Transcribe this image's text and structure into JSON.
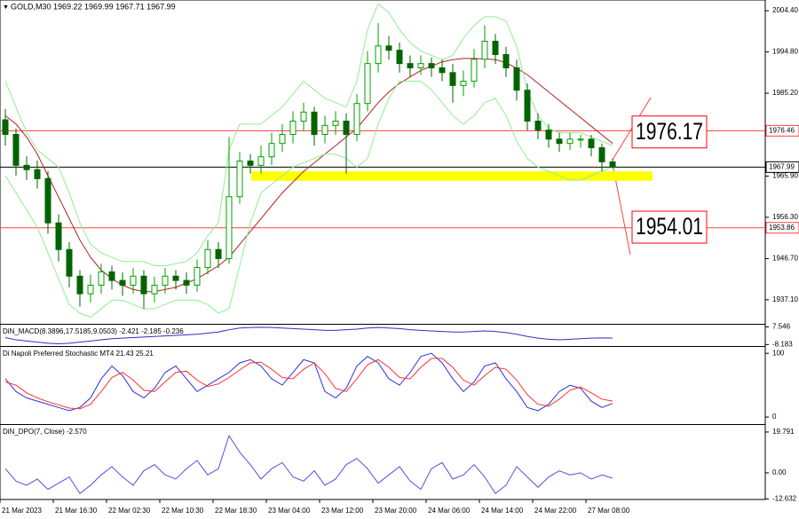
{
  "chart_data": [
    {
      "type": "candlestick",
      "title": "GOLD,M30 1969.22 1969.99 1967.71 1967.99",
      "categories": [
        "21 Mar 2023",
        null,
        null,
        null,
        null,
        "21 Mar 16:30",
        null,
        null,
        null,
        null,
        "22 Mar 02:30",
        null,
        null,
        null,
        null,
        "22 Mar 10:30",
        null,
        null,
        null,
        null,
        "22 Mar 18:30",
        null,
        null,
        null,
        null,
        "23 Mar 04:00",
        null,
        null,
        null,
        null,
        "23 Mar 12:00",
        null,
        null,
        null,
        null,
        "23 Mar 20:00",
        null,
        null,
        null,
        null,
        "24 Mar 06:00",
        null,
        null,
        null,
        null,
        "24 Mar 14:00",
        null,
        null,
        null,
        null,
        "24 Mar 22:00",
        null,
        null,
        null,
        null,
        "27 Mar 08:00",
        null,
        null
      ],
      "open": [
        1979.0,
        1975.6,
        1968.4,
        1967.4,
        1965.3,
        1955.0,
        1948.8,
        1942.6,
        1938.5,
        1940.5,
        1943.6,
        1941.6,
        1940.5,
        1942.6,
        1938.5,
        1940.5,
        1942.6,
        1941.6,
        1940.5,
        1944.6,
        1948.8,
        1946.7,
        1961.1,
        1969.4,
        1968.4,
        1970.4,
        1973.5,
        1975.6,
        1978.7,
        1980.8,
        1975.6,
        1977.7,
        1978.7,
        1975.6,
        1982.8,
        1992.1,
        1996.2,
        1995.2,
        1992.1,
        1991.1,
        1992.1,
        1991.1,
        1990.0,
        1987.0,
        1988.0,
        1993.1,
        1997.3,
        1994.2,
        1991.1,
        1985.9,
        1978.7,
        1976.6,
        1974.5,
        1973.5,
        1974.5,
        1974.5,
        1972.5,
        1969.22
      ],
      "high": [
        1981.5,
        1977.0,
        1970.5,
        1969.5,
        1967.0,
        1957.0,
        1950.5,
        1944.0,
        1943.0,
        1945.5,
        1945.0,
        1943.5,
        1944.5,
        1944.0,
        1942.5,
        1944.5,
        1944.0,
        1943.5,
        1946.5,
        1951.0,
        1950.5,
        1975.0,
        1971.5,
        1971.0,
        1973.0,
        1976.0,
        1978.0,
        1981.0,
        1983.0,
        1982.0,
        1980.0,
        1981.0,
        1980.5,
        1985.0,
        1995.0,
        2001.5,
        1998.5,
        1997.0,
        1994.0,
        1994.0,
        1993.5,
        1993.0,
        1992.0,
        1990.5,
        1995.5,
        2001.0,
        1999.0,
        1996.0,
        1993.0,
        1987.5,
        1980.5,
        1978.0,
        1976.0,
        1976.0,
        1975.5,
        1975.5,
        1973.5,
        1969.99
      ],
      "low": [
        1973.0,
        1966.0,
        1965.0,
        1963.0,
        1952.5,
        1946.0,
        1940.0,
        1935.5,
        1936.5,
        1938.5,
        1939.5,
        1938.0,
        1938.5,
        1935.0,
        1936.5,
        1938.5,
        1939.5,
        1938.5,
        1939.0,
        1943.0,
        1944.5,
        1945.5,
        1959.5,
        1966.5,
        1966.5,
        1968.5,
        1971.5,
        1973.5,
        1976.5,
        1973.0,
        1973.5,
        1975.5,
        1966.5,
        1974.0,
        1981.0,
        1990.0,
        1993.0,
        1990.0,
        1989.0,
        1989.5,
        1989.0,
        1988.0,
        1983.0,
        1984.5,
        1986.5,
        1991.0,
        1992.0,
        1989.0,
        1983.5,
        1976.5,
        1974.5,
        1972.5,
        1971.5,
        1972.0,
        1972.5,
        1970.5,
        1967.0,
        1967.71
      ],
      "close": [
        1975.6,
        1968.4,
        1967.4,
        1965.3,
        1955.0,
        1948.8,
        1942.6,
        1938.5,
        1940.5,
        1943.6,
        1941.6,
        1940.5,
        1942.6,
        1938.5,
        1940.5,
        1942.6,
        1941.6,
        1940.5,
        1944.6,
        1948.8,
        1946.7,
        1961.1,
        1969.4,
        1968.4,
        1970.4,
        1973.5,
        1975.6,
        1978.7,
        1980.8,
        1975.6,
        1977.7,
        1978.7,
        1975.6,
        1982.8,
        1992.1,
        1996.2,
        1995.2,
        1992.1,
        1991.1,
        1992.1,
        1991.1,
        1990.0,
        1987.0,
        1988.0,
        1993.1,
        1997.3,
        1994.2,
        1991.1,
        1985.9,
        1978.7,
        1976.6,
        1974.5,
        1973.5,
        1974.5,
        1974.5,
        1972.5,
        1969.22,
        1967.99
      ],
      "up_color": "#00a000",
      "down_color": "#006400",
      "series": [
        {
          "color": "#b22222",
          "values": [
            1980,
            1978,
            1975,
            1971,
            1966,
            1961,
            1956,
            1951,
            1947,
            1944,
            1942,
            1940.5,
            1939.5,
            1939,
            1939,
            1939.5,
            1940,
            1941,
            1942,
            1943.5,
            1945,
            1947,
            1950,
            1953,
            1956,
            1959,
            1962,
            1964.5,
            1967,
            1969,
            1971,
            1973,
            1975,
            1977,
            1980,
            1983,
            1985.5,
            1987.5,
            1989,
            1990.5,
            1991.5,
            1992.5,
            1993,
            1993.3,
            1993.3,
            1993.2,
            1993,
            1992.3,
            1991,
            1989.5,
            1987.5,
            1985.5,
            1983.5,
            1981.5,
            1979.5,
            1977.5,
            1975.5,
            1973.5
          ]
        },
        {
          "color": "#90ee90",
          "values": [
            1988,
            1982,
            1976,
            1972,
            1970,
            1968,
            1962,
            1955,
            1950,
            1948,
            1947,
            1946,
            1946,
            1946,
            1945,
            1945,
            1945.5,
            1946,
            1948,
            1952,
            1955,
            1972,
            1978,
            1978,
            1978,
            1980,
            1982,
            1985,
            1988,
            1986,
            1984,
            1983,
            1982,
            1988,
            2000,
            2006,
            2004,
            2000,
            1997,
            1995,
            1994,
            1993,
            1994,
            1998,
            2001,
            2003,
            2003,
            2002,
            1996,
            1986,
            1980,
            1977,
            1976,
            1976,
            1976,
            1975,
            1974,
            1973
          ]
        },
        {
          "color": "#90ee90",
          "values": [
            1966,
            1962,
            1958,
            1954,
            1948,
            1942,
            1936,
            1934,
            1933,
            1935,
            1937,
            1937,
            1936,
            1935,
            1935,
            1936,
            1937,
            1937,
            1937,
            1936,
            1934,
            1935,
            1945,
            1955,
            1962,
            1964,
            1966,
            1968,
            1969,
            1970,
            1971,
            1971,
            1970,
            1968,
            1970,
            1978,
            1984,
            1988,
            1988,
            1988,
            1986,
            1983,
            1980,
            1978,
            1980,
            1983,
            1984,
            1980,
            1974,
            1970,
            1968,
            1967,
            1966,
            1965,
            1965,
            1966,
            1967,
            1968
          ]
        }
      ],
      "ylim": [
        1931.5,
        2006.9
      ],
      "yticks": [
        {
          "value": 2004.4,
          "label": "2004.40"
        },
        {
          "value": 1994.8,
          "label": "1994.80"
        },
        {
          "value": 1985.2,
          "label": "1985.20"
        },
        {
          "value": 1965.9,
          "label": "1965.90"
        },
        {
          "value": 1956.3,
          "label": "1956.30"
        },
        {
          "value": 1946.7,
          "label": "1946.70"
        },
        {
          "value": 1937.1,
          "label": "1937.10"
        }
      ],
      "hlines": [
        {
          "value": 1976.46,
          "color": "#ff4040"
        },
        {
          "value": 1953.86,
          "color": "#ff4040"
        },
        {
          "value": 1967.99,
          "color": "#000000"
        }
      ],
      "zone": {
        "low": 1964.8,
        "high": 1967.0,
        "color": "#ffff00"
      },
      "annotations": [
        {
          "value": 1976.17,
          "color": "#ff0000"
        },
        {
          "value": 1954.01,
          "color": "#ff0000"
        }
      ]
    },
    {
      "type": "line",
      "title": "DiN_MACD(8.3896,17.5185,9.0503) -2.421 -2.185 -0.236",
      "series": [
        {
          "color": "#3030c0",
          "values": [
            -2,
            -4,
            -5,
            -6,
            -7,
            -7.5,
            -7,
            -6,
            -5,
            -4,
            -3,
            -2.5,
            -2,
            -1.5,
            -1,
            -0.5,
            0,
            0.5,
            1,
            2,
            3,
            5,
            6.5,
            7,
            7.2,
            7,
            6.5,
            6,
            5.5,
            5,
            4.5,
            4.5,
            5,
            5.5,
            6.5,
            7,
            6.5,
            6,
            5,
            4.5,
            4,
            3.5,
            3,
            3,
            3.5,
            4,
            3.5,
            2.5,
            1,
            -1,
            -2.5,
            -3.5,
            -4,
            -3.5,
            -3,
            -2.5,
            -2.3,
            -2.421
          ]
        }
      ],
      "ylim": [
        -9.5,
        9.5
      ],
      "yticks": [
        7.546,
        -8.183
      ]
    },
    {
      "type": "line",
      "title": "Di Napoli Preferred Stochastic MT4 21.43 25.21",
      "series": [
        {
          "color": "#3030e0",
          "values": [
            60,
            40,
            30,
            25,
            20,
            15,
            10,
            15,
            30,
            60,
            80,
            65,
            40,
            30,
            45,
            70,
            80,
            60,
            40,
            50,
            60,
            70,
            85,
            90,
            80,
            60,
            50,
            70,
            90,
            85,
            40,
            30,
            45,
            80,
            95,
            85,
            60,
            50,
            70,
            95,
            100,
            85,
            60,
            40,
            55,
            80,
            85,
            60,
            40,
            15,
            10,
            20,
            40,
            50,
            45,
            25,
            15,
            21.43
          ]
        },
        {
          "color": "#ff3030",
          "values": [
            55,
            50,
            38,
            30,
            24,
            19,
            14,
            13,
            20,
            40,
            62,
            70,
            58,
            42,
            40,
            55,
            70,
            72,
            58,
            48,
            52,
            62,
            74,
            85,
            86,
            75,
            62,
            60,
            75,
            85,
            68,
            45,
            40,
            60,
            82,
            90,
            78,
            62,
            60,
            78,
            92,
            92,
            78,
            58,
            50,
            65,
            78,
            75,
            58,
            35,
            20,
            17,
            28,
            42,
            47,
            38,
            28,
            25.21
          ]
        }
      ],
      "ylim": [
        -11,
        110
      ],
      "yticks": [
        100,
        0
      ]
    },
    {
      "type": "line",
      "title": "DiN_DPO(7, Close) -2.570",
      "series": [
        {
          "color": "#5050e0",
          "values": [
            2,
            -4,
            -6,
            -3,
            -8,
            -5,
            -2,
            -10,
            -6,
            -1,
            3,
            -2,
            -6,
            1,
            4,
            -1,
            -3,
            2,
            6,
            -1,
            2,
            18,
            10,
            4,
            -3,
            2,
            5,
            -2,
            -4,
            1,
            -6,
            -3,
            4,
            7,
            2,
            -5,
            -1,
            3,
            -4,
            -8,
            2,
            5,
            -3,
            -1,
            4,
            -2,
            -10,
            -6,
            3,
            -2,
            -7,
            -2,
            1,
            -1,
            0,
            -3,
            -1,
            -2.57
          ]
        }
      ],
      "ylim": [
        -12.9,
        23.2
      ],
      "yticks": [
        19.791,
        {
          "value": 0,
          "label": "0.00"
        },
        -12.632
      ]
    }
  ]
}
